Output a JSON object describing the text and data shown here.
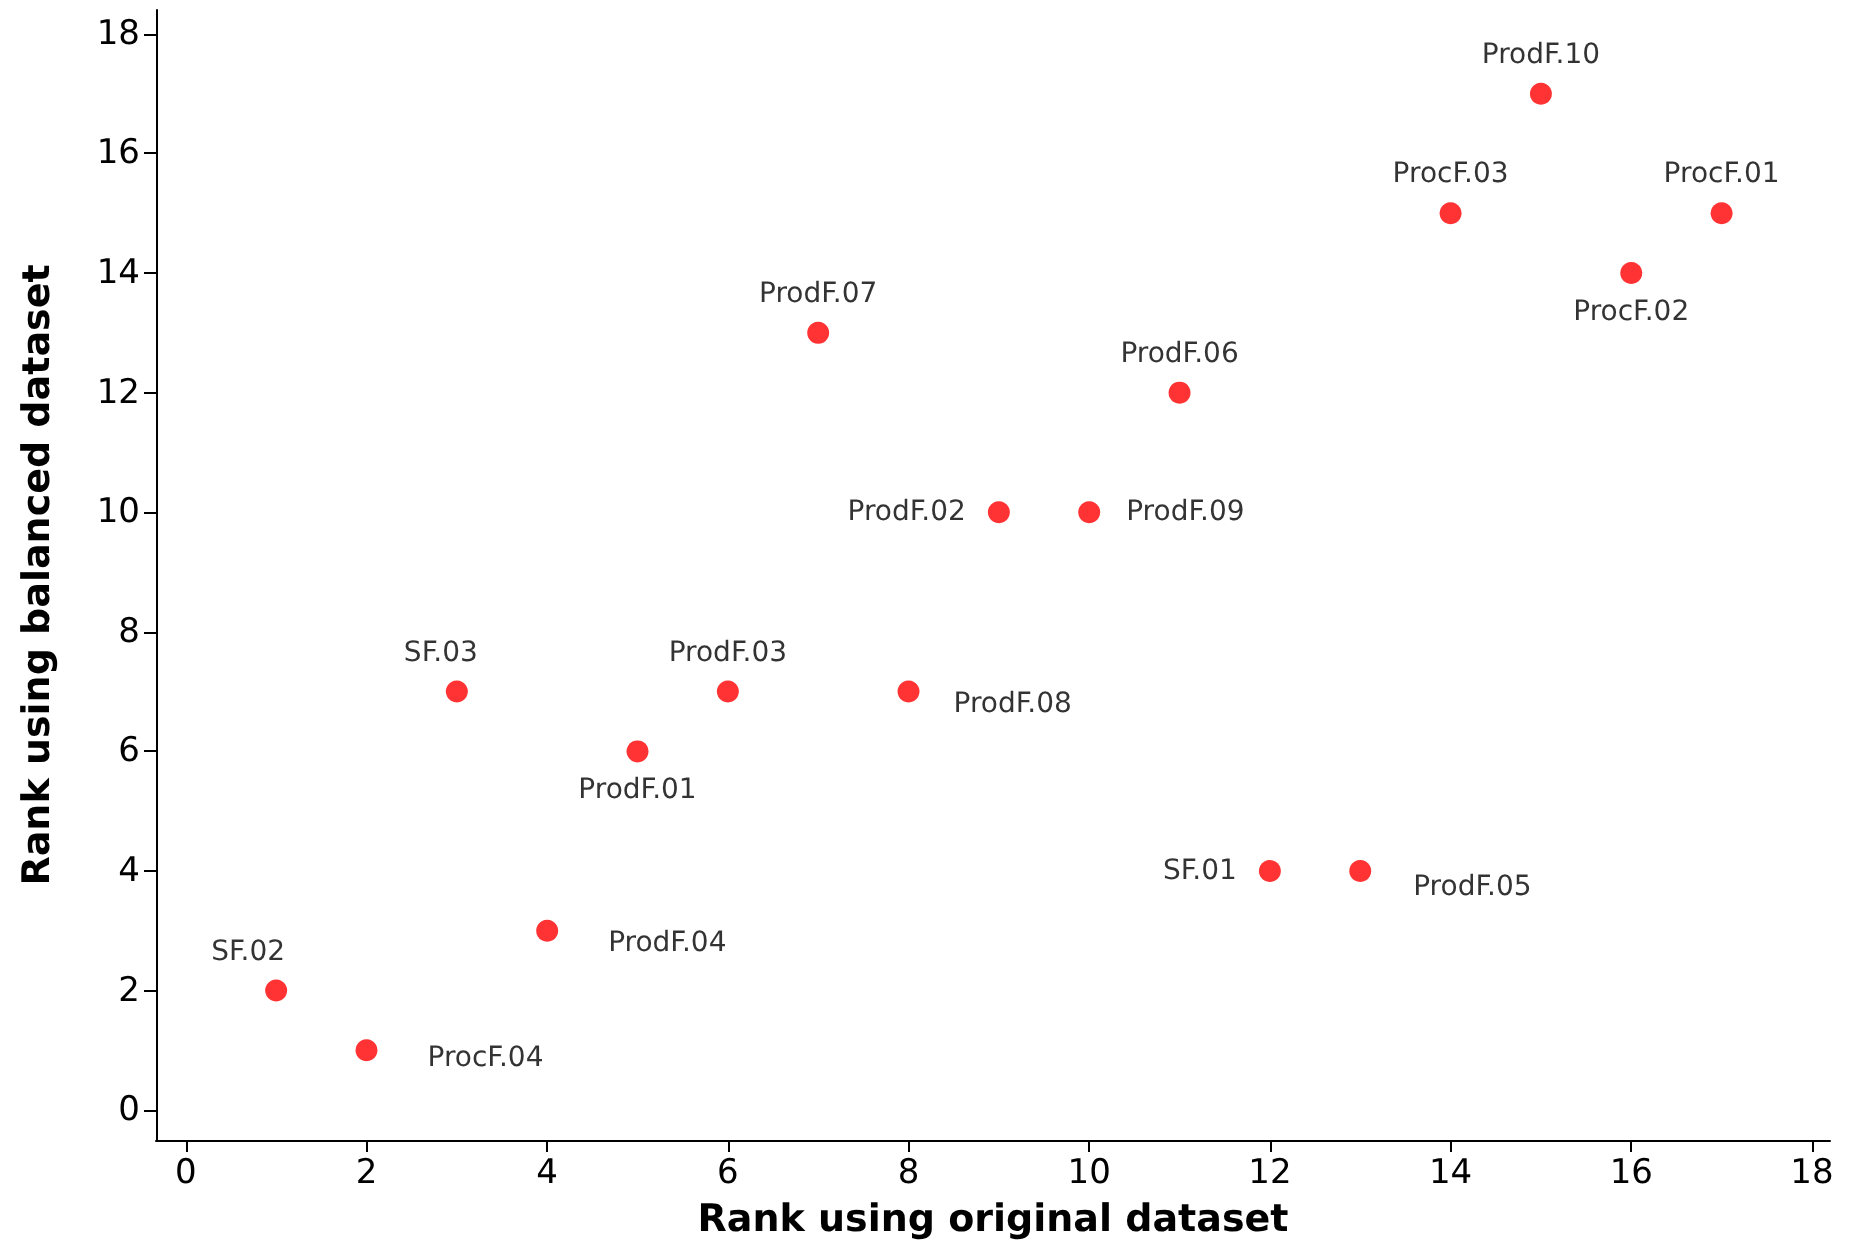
{
  "chart_data": {
    "type": "scatter",
    "xlabel": "Rank using original dataset",
    "ylabel": "Rank using balanced dataset",
    "x": [
      1,
      2,
      3,
      4,
      5,
      6,
      7,
      8,
      9,
      10,
      11,
      12,
      13,
      14,
      15,
      16,
      17
    ],
    "values": [
      2,
      1,
      7,
      3,
      6,
      7,
      13,
      7,
      10,
      10,
      12,
      4,
      4,
      15,
      17,
      14,
      15
    ],
    "value_labels": [
      "SF.02",
      "ProcF.04",
      "SF.03",
      "ProdF.04",
      "ProdF.01",
      "ProdF.03",
      "ProdF.07",
      "ProdF.08",
      "ProdF.02",
      "ProdF.09",
      "ProdF.06",
      "SF.01",
      "ProdF.05",
      "ProcF.03",
      "ProdF.10",
      "ProcF.02",
      "ProcF.01"
    ],
    "color": "#ff0000",
    "marker": "circle",
    "xlim": [
      -0.33,
      18.2
    ],
    "xticks": [
      0,
      2,
      4,
      6,
      8,
      10,
      12,
      14,
      16,
      18
    ],
    "ylim": [
      -0.5,
      18.4
    ],
    "yticks": [
      0,
      2,
      4,
      6,
      8,
      10,
      12,
      14,
      16,
      18
    ],
    "grid": false
  }
}
